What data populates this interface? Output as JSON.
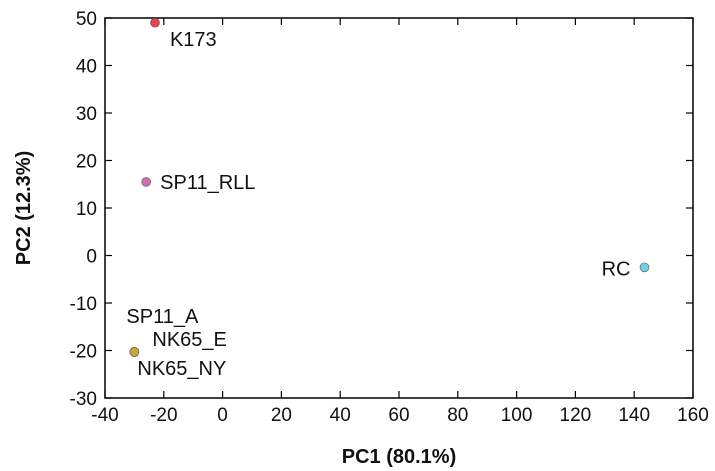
{
  "chart_data": {
    "type": "scatter",
    "title": "",
    "xlabel": "PC1 (80.1%)",
    "ylabel": "PC2 (12.3%)",
    "xlim": [
      -40,
      160
    ],
    "ylim": [
      -30,
      50
    ],
    "xticks": [
      -40,
      -20,
      0,
      20,
      40,
      60,
      80,
      100,
      120,
      140,
      160
    ],
    "yticks": [
      -30,
      -20,
      -10,
      0,
      10,
      20,
      30,
      40,
      50
    ],
    "grid": false,
    "points": [
      {
        "label": "K173",
        "x": -23,
        "y": 49,
        "color": "#e8434a"
      },
      {
        "label": "SP11_RLL",
        "x": -26,
        "y": 15.5,
        "color": "#cc6fb5"
      },
      {
        "label": "RC",
        "x": 143.5,
        "y": -2.5,
        "color": "#6fd0e0"
      },
      {
        "label": "SP11_A",
        "x": -30,
        "y": -20.3,
        "color": "#cfa535"
      },
      {
        "label": "NK65_E",
        "x": -30,
        "y": -20.3,
        "color": "#cfa535"
      },
      {
        "label": "NK65_NY",
        "x": -30,
        "y": -20.3,
        "color": "#cfa535"
      }
    ]
  }
}
